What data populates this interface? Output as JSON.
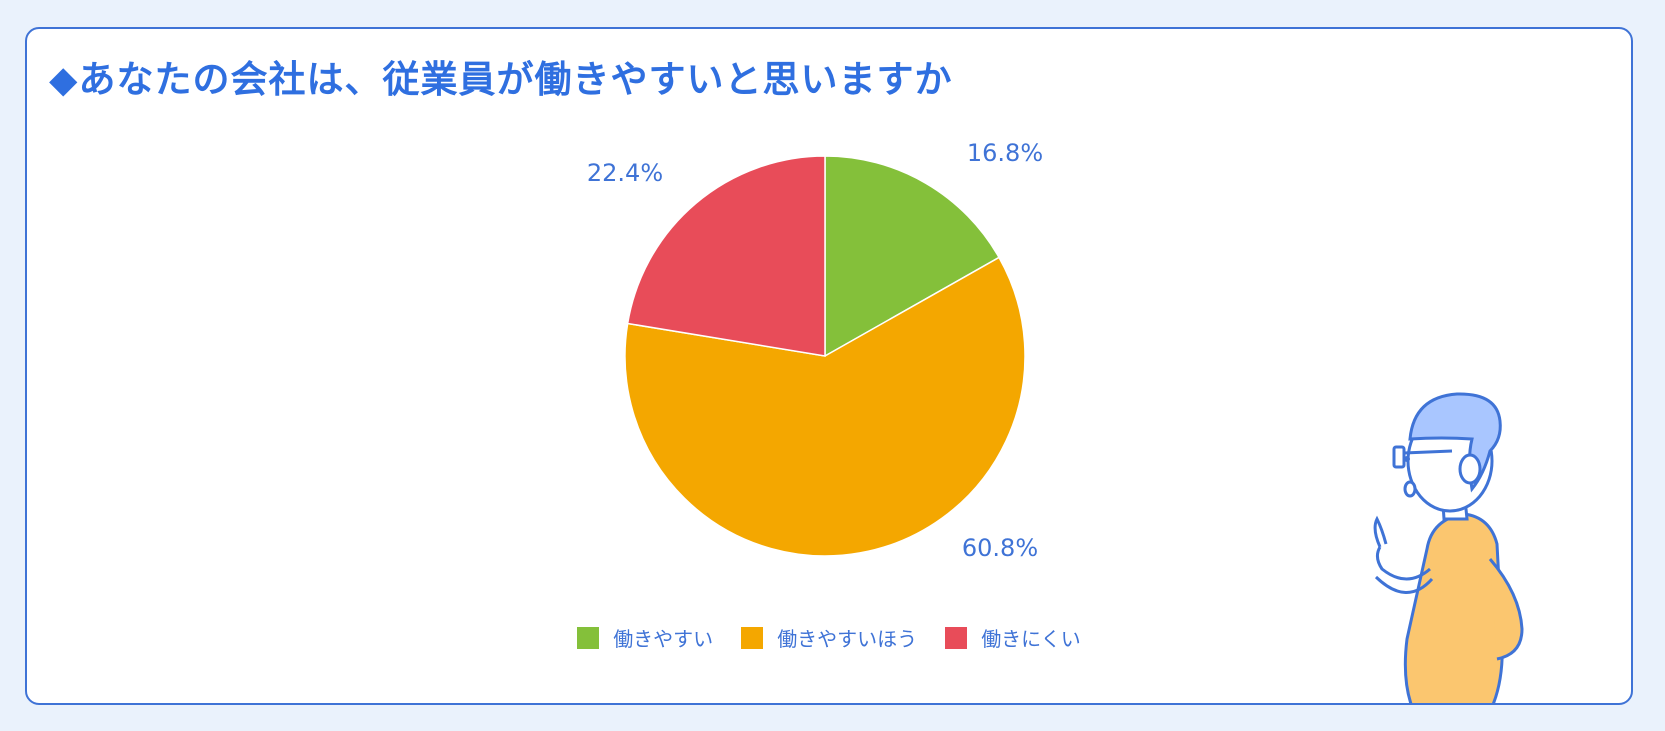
{
  "title": "◆あなたの会社は、従業員が働きやすいと思いますか",
  "chart_data": {
    "type": "pie",
    "categories": [
      "働きやすい",
      "働きやすいほう",
      "働きにくい"
    ],
    "values": [
      16.8,
      60.8,
      22.4
    ],
    "labels": [
      "16.8%",
      "60.8%",
      "22.4%"
    ],
    "colors": [
      "#84c03a",
      "#f4a700",
      "#e84c59"
    ],
    "title": "◆あなたの会社は、従業員が働きやすいと思いますか",
    "legend_position": "bottom"
  },
  "colors": {
    "accent": "#2f6fe0",
    "border": "#3f73d6",
    "background": "#eaf2fc"
  },
  "illustration": {
    "icon": "pointing-person-illustration"
  }
}
